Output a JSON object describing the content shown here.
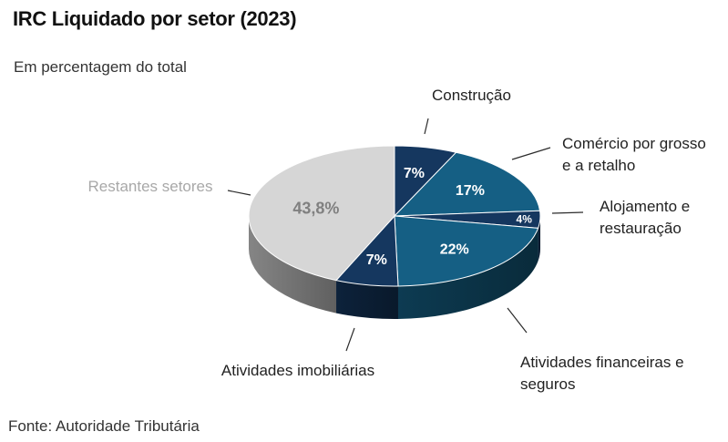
{
  "title": "IRC Liquidado por setor (2023)",
  "subtitle": "Em percentagem do total",
  "source": "Fonte: Autoridade Tributária",
  "colors": {
    "navy": "#15375f",
    "teal": "#155f84",
    "grey": "#d6d6d6",
    "muted_label": "#a8a8a8"
  },
  "chart_data": {
    "type": "pie",
    "style": "3d",
    "slices": [
      {
        "name": "Construção",
        "label_lines": [
          "Construção"
        ],
        "value": 7,
        "value_label": "7%",
        "color": "#15375f"
      },
      {
        "name": "Comércio por grosso e a retalho",
        "label_lines": [
          "Comércio por grosso",
          "e a retalho"
        ],
        "value": 17,
        "value_label": "17%",
        "color": "#155f84"
      },
      {
        "name": "Alojamento e restauração",
        "label_lines": [
          "Alojamento e",
          "restauração"
        ],
        "value": 4,
        "value_label": "4%",
        "color": "#15375f"
      },
      {
        "name": "Atividades financeiras e seguros",
        "label_lines": [
          "Atividades financeiras e",
          "seguros"
        ],
        "value": 22,
        "value_label": "22%",
        "color": "#155f84"
      },
      {
        "name": "Atividades imobiliárias",
        "label_lines": [
          "Atividades imobiliárias"
        ],
        "value": 7,
        "value_label": "7%",
        "color": "#15375f"
      },
      {
        "name": "Restantes setores",
        "label_lines": [
          "Restantes setores"
        ],
        "value": 43.8,
        "value_label": "43,8%",
        "color": "#d6d6d6"
      }
    ]
  }
}
